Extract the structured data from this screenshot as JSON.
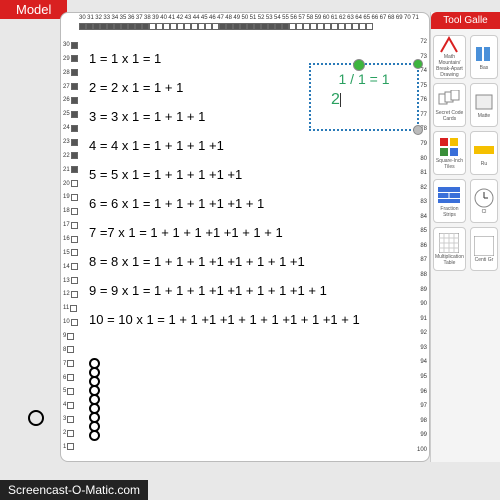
{
  "tab_label": "Model",
  "ruler_top_start": 30,
  "ruler_top_end": 71,
  "ruler_left_start": 30,
  "ruler_left_end": 1,
  "ruler_right_start": 72,
  "ruler_right_end": 100,
  "equations": [
    "1 = 1 x 1 = 1",
    "2 = 2 x 1 = 1 + 1",
    "3 = 3 x 1 = 1 + 1 + 1",
    "4 = 4 x 1 = 1 + 1 + 1 +1",
    "5 = 5 x 1 = 1 + 1 + 1 +1 +1",
    "6 = 6 x 1 = 1 + 1 + 1 +1 +1 + 1",
    "7 =7 x 1 = 1 + 1 + 1 +1 +1 + 1 + 1",
    "8 = 8 x 1 = 1 + 1 + 1 +1 +1 + 1 + 1 +1",
    "9 = 9 x 1 = 1 + 1 + 1 +1 +1 + 1 + 1 +1 + 1",
    "10 = 10 x 1 = 1 + 1 +1 +1 + 1 + 1 +1 + 1 +1 + 1"
  ],
  "annotation": {
    "line1": "1 / 1 = 1",
    "line2": "2"
  },
  "gallery_title": "Tool Galle",
  "tools": [
    {
      "name": "math-mountain",
      "label": "Math Mountain/ Break-Apart Drawing"
    },
    {
      "name": "base",
      "label": "Bas"
    },
    {
      "name": "secret-code",
      "label": "Secret Code Cards"
    },
    {
      "name": "matte",
      "label": "Matte"
    },
    {
      "name": "square-inch",
      "label": "Square-Inch Tiles"
    },
    {
      "name": "ru",
      "label": "Ru"
    },
    {
      "name": "fraction-strips",
      "label": "Fraction Strips"
    },
    {
      "name": "clock",
      "label": "Cl"
    },
    {
      "name": "mult-table",
      "label": "Multiplication Table"
    },
    {
      "name": "centi",
      "label": "Centi Gr"
    }
  ],
  "watermark": "Screencast-O-Matic.com",
  "colors": {
    "red": "#d92020",
    "green_text": "#2aa060",
    "dotted_border": "#2a7ab8"
  }
}
